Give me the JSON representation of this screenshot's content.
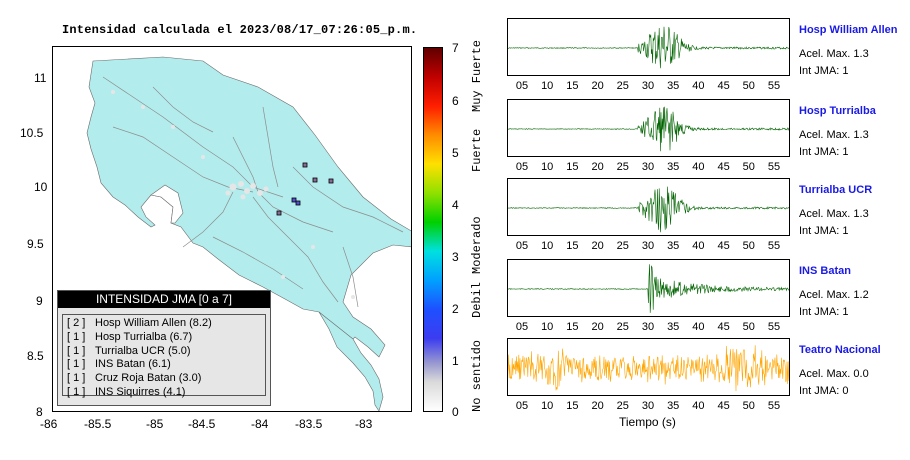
{
  "map": {
    "title": "Intensidad calculada el 2023/08/17_07:26:05_p.m.",
    "x_ticks": [
      "-86",
      "-85.5",
      "-85",
      "-84.5",
      "-84",
      "-83.5",
      "-83"
    ],
    "y_ticks": [
      "11",
      "10.5",
      "10",
      "9.5",
      "9",
      "8.5",
      "8"
    ],
    "land_color": "#b3ecec",
    "legend": {
      "title": "INTENSIDAD JMA [0 a 7]",
      "rows": [
        {
          "count": "[ 2 ]",
          "label": "Hosp William Allen (8.2)"
        },
        {
          "count": "[ 1 ]",
          "label": "Hosp Turrialba (6.7)"
        },
        {
          "count": "[ 1 ]",
          "label": "Turrialba UCR (5.0)"
        },
        {
          "count": "[ 1 ]",
          "label": "INS Batan (6.1)"
        },
        {
          "count": "[ 1 ]",
          "label": "Cruz Roja Batan (3.0)"
        },
        {
          "count": "[ 1 ]",
          "label": "INS Siquirres (4.1)"
        }
      ]
    }
  },
  "colorbar": {
    "numbers": [
      "7",
      "6",
      "5",
      "4",
      "3",
      "2",
      "1",
      "0"
    ],
    "categories": [
      "Muy Fuerte",
      "Fuerte",
      "Moderado",
      "Debil",
      "No sentido"
    ]
  },
  "traces": {
    "x_ticks": [
      "05",
      "10",
      "15",
      "20",
      "25",
      "30",
      "35",
      "40",
      "45",
      "50",
      "55"
    ],
    "x_axis_title": "Tiempo (s)",
    "stations": [
      {
        "name": "Hosp William Allen",
        "accel": "Acel. Max. 1.3",
        "jma": "Int JMA: 1",
        "color": "#006400"
      },
      {
        "name": "Hosp Turrialba",
        "accel": "Acel. Max. 1.3",
        "jma": "Int JMA: 1",
        "color": "#006400"
      },
      {
        "name": "Turrialba UCR",
        "accel": "Acel. Max. 1.3",
        "jma": "Int JMA: 1",
        "color": "#006400"
      },
      {
        "name": "INS Batan",
        "accel": "Acel. Max. 1.2",
        "jma": "Int JMA: 1",
        "color": "#006400"
      },
      {
        "name": "Teatro Nacional",
        "accel": "Acel. Max. 0.0",
        "jma": "Int JMA: 0",
        "color": "#ffa500"
      }
    ]
  }
}
